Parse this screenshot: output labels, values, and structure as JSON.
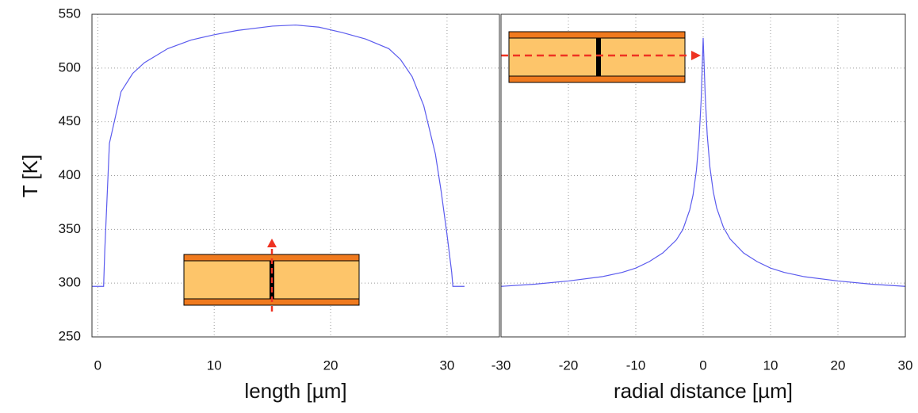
{
  "chart_data": [
    {
      "type": "line",
      "ylabel": "T [K]",
      "xlabel": "length [µm]",
      "color": "#5b5bee",
      "grid": true,
      "xlim": [
        -0.5,
        34.5
      ],
      "xticks": [
        0,
        10,
        20,
        30
      ],
      "ylim": [
        250,
        550
      ],
      "yticks": [
        250,
        300,
        350,
        400,
        450,
        500,
        550
      ],
      "x": [
        -0.5,
        0.5,
        0.6,
        1,
        2,
        3,
        4,
        6,
        8,
        10,
        12,
        15,
        17,
        19,
        21,
        23,
        25,
        26,
        27,
        28,
        29,
        29.5,
        30,
        30.4,
        30.5,
        31.5
      ],
      "values": [
        297,
        297,
        330,
        430,
        478,
        495,
        505,
        518,
        526,
        531,
        535,
        539,
        540,
        538,
        533,
        527,
        518,
        508,
        492,
        465,
        420,
        385,
        345,
        310,
        297,
        297
      ]
    },
    {
      "type": "line",
      "xlabel": "radial distance [µm]",
      "color": "#5b5bee",
      "grid": true,
      "xlim": [
        -30,
        30
      ],
      "xticks": [
        -30,
        -20,
        -10,
        0,
        10,
        20,
        30
      ],
      "ylim": [
        250,
        550
      ],
      "yticks": [
        250,
        300,
        350,
        400,
        450,
        500,
        550
      ],
      "x": [
        -30,
        -25,
        -20,
        -15,
        -12,
        -10,
        -8,
        -6,
        -4,
        -3,
        -2,
        -1.5,
        -1,
        -0.6,
        -0.3,
        0,
        0.3,
        0.6,
        1,
        1.5,
        2,
        3,
        4,
        6,
        8,
        10,
        12,
        15,
        20,
        25,
        30
      ],
      "values": [
        297,
        299,
        302,
        306,
        310,
        314,
        320,
        328,
        340,
        350,
        368,
        382,
        405,
        435,
        470,
        528,
        475,
        438,
        408,
        385,
        370,
        352,
        341,
        328,
        320,
        314,
        310,
        306,
        302,
        299,
        297
      ]
    }
  ]
}
